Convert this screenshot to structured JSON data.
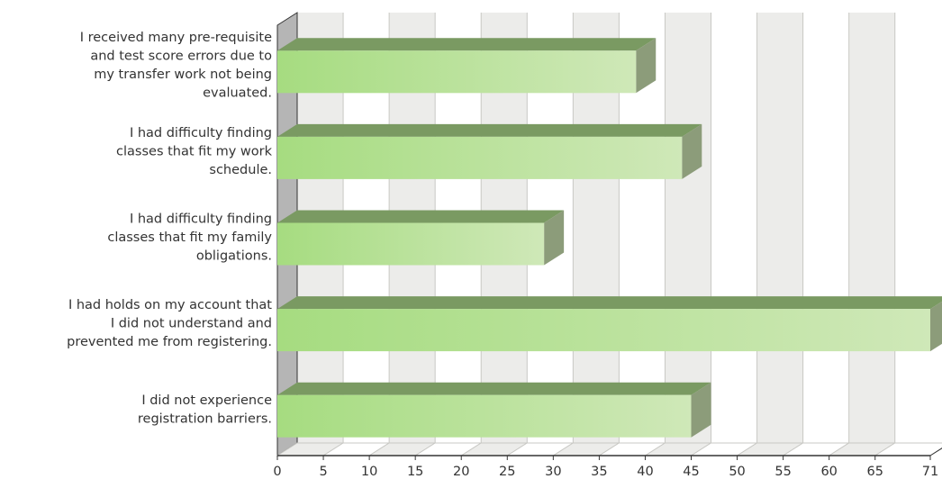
{
  "chart_data": {
    "type": "bar",
    "orientation": "horizontal",
    "categories": [
      [
        "I received many pre-requisite",
        "and test score errors due to",
        "my transfer work not being",
        "evaluated."
      ],
      [
        "I had difficulty finding",
        "classes that fit my work",
        "schedule."
      ],
      [
        "I had difficulty finding",
        "classes that fit my family",
        "obligations."
      ],
      [
        "I had holds on my account that",
        "I did not understand and",
        "prevented me from registering."
      ],
      [
        "I did not experience",
        "registration barriers."
      ]
    ],
    "values": [
      39,
      44,
      29,
      71,
      45
    ],
    "xlim": [
      0,
      71
    ],
    "ticks": [
      0,
      5,
      10,
      15,
      20,
      25,
      30,
      35,
      40,
      45,
      50,
      55,
      60,
      65,
      71
    ],
    "grid": true,
    "style": "3d",
    "colors": {
      "bar_light": "#cfe8b8",
      "bar_dark": "#a6dc80",
      "bar_top": "#7a9a62",
      "bar_side": "#8c9c7a",
      "band_shaded": "#ececea",
      "band_plain": "#ffffff",
      "gridline": "#c8c8c4",
      "side_wall": "#b5b5b5",
      "axis": "#333333"
    }
  }
}
